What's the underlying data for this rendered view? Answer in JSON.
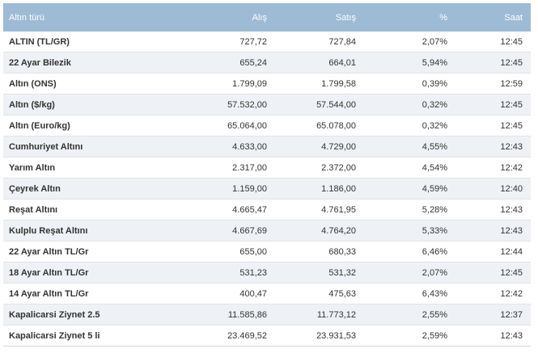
{
  "table": {
    "headers": [
      "Altın türü",
      "Alış",
      "Satış",
      "%",
      "Saat"
    ],
    "rows": [
      [
        "ALTIN (TL/GR)",
        "727,72",
        "727,84",
        "2,07%",
        "12:45"
      ],
      [
        "22 Ayar Bilezik",
        "655,24",
        "664,01",
        "5,94%",
        "12:45"
      ],
      [
        "Altın (ONS)",
        "1.799,09",
        "1.799,58",
        "0,39%",
        "12:59"
      ],
      [
        "Altın ($/kg)",
        "57.532,00",
        "57.544,00",
        "0,32%",
        "12:45"
      ],
      [
        "Altın (Euro/kg)",
        "65.064,00",
        "65.078,00",
        "0,32%",
        "12:45"
      ],
      [
        "Cumhuriyet Altını",
        "4.633,00",
        "4.729,00",
        "4,55%",
        "12:43"
      ],
      [
        "Yarım Altın",
        "2.317,00",
        "2.372,00",
        "4,54%",
        "12:42"
      ],
      [
        "Çeyrek Altın",
        "1.159,00",
        "1.186,00",
        "4,59%",
        "12:40"
      ],
      [
        "Reşat Altını",
        "4.665,47",
        "4.761,95",
        "5,28%",
        "12:43"
      ],
      [
        "Kulplu Reşat Altını",
        "4.667,69",
        "4.764,20",
        "5,33%",
        "12:43"
      ],
      [
        "22 Ayar Altın TL/Gr",
        "655,00",
        "680,33",
        "6,46%",
        "12:44"
      ],
      [
        "18 Ayar Altın TL/Gr",
        "531,23",
        "531,32",
        "2,07%",
        "12:45"
      ],
      [
        "14 Ayar Altın TL/Gr",
        "400,47",
        "475,63",
        "6,43%",
        "12:42"
      ],
      [
        "Kapalicarsi Ziynet 2.5",
        "11.585,86",
        "11.773,12",
        "2,55%",
        "12:37"
      ],
      [
        "Kapalicarsi Ziynet 5 li",
        "23.469,52",
        "23.931,53",
        "2,59%",
        "12:43"
      ]
    ]
  },
  "colors": {
    "header_bg": "#9dbbd4",
    "header_text": "#ffffff",
    "row_alt_bg": "#eef1f5",
    "text": "#333333"
  }
}
